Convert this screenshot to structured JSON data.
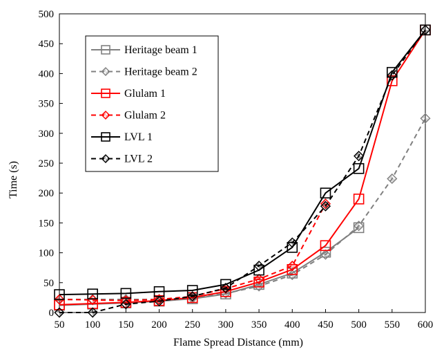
{
  "chart_data": {
    "type": "line",
    "title": "",
    "xlabel": "Flame Spread Distance (mm)",
    "ylabel": "Time (s)",
    "xlim": [
      50,
      600
    ],
    "ylim": [
      0,
      500
    ],
    "x_ticks": [
      50,
      100,
      150,
      200,
      250,
      300,
      350,
      400,
      450,
      500,
      550,
      600
    ],
    "y_ticks": [
      0,
      50,
      100,
      150,
      200,
      250,
      300,
      350,
      400,
      450,
      500
    ],
    "grid": false,
    "legend_position": "top-left",
    "series": [
      {
        "name": "Heritage beam 1",
        "color": "#808080",
        "dash": "solid",
        "marker": "square",
        "points": [
          [
            50,
            12
          ],
          [
            100,
            14
          ],
          [
            150,
            16
          ],
          [
            200,
            19
          ],
          [
            250,
            23
          ],
          [
            300,
            31
          ],
          [
            350,
            47
          ],
          [
            400,
            66
          ],
          [
            450,
            101
          ],
          [
            500,
            142
          ]
        ]
      },
      {
        "name": "Heritage beam 2",
        "color": "#808080",
        "dash": "dashed",
        "marker": "diamond",
        "points": [
          [
            50,
            22
          ],
          [
            100,
            22
          ],
          [
            150,
            22
          ],
          [
            200,
            22
          ],
          [
            250,
            24
          ],
          [
            300,
            32
          ],
          [
            350,
            44
          ],
          [
            400,
            63
          ],
          [
            450,
            97
          ],
          [
            500,
            145
          ],
          [
            550,
            224
          ],
          [
            600,
            325
          ]
        ]
      },
      {
        "name": "Glulam 1",
        "color": "#ff0000",
        "dash": "solid",
        "marker": "square",
        "points": [
          [
            50,
            13
          ],
          [
            100,
            15
          ],
          [
            150,
            17
          ],
          [
            200,
            20
          ],
          [
            250,
            25
          ],
          [
            300,
            35
          ],
          [
            350,
            51
          ],
          [
            400,
            72
          ],
          [
            450,
            112
          ],
          [
            500,
            190
          ],
          [
            550,
            388
          ],
          [
            600,
            473
          ]
        ]
      },
      {
        "name": "Glulam 2",
        "color": "#ff0000",
        "dash": "dashed",
        "marker": "diamond",
        "points": [
          [
            50,
            22
          ],
          [
            100,
            21
          ],
          [
            150,
            20
          ],
          [
            200,
            22
          ],
          [
            250,
            27
          ],
          [
            300,
            40
          ],
          [
            350,
            56
          ],
          [
            400,
            78
          ],
          [
            450,
            182
          ]
        ]
      },
      {
        "name": "LVL 1",
        "color": "#000000",
        "dash": "solid",
        "marker": "square",
        "points": [
          [
            50,
            30
          ],
          [
            100,
            31
          ],
          [
            150,
            32
          ],
          [
            200,
            35
          ],
          [
            250,
            37
          ],
          [
            300,
            47
          ],
          [
            350,
            71
          ],
          [
            400,
            109
          ],
          [
            450,
            200
          ],
          [
            500,
            241
          ],
          [
            550,
            402
          ],
          [
            600,
            473
          ]
        ]
      },
      {
        "name": "LVL 2",
        "color": "#000000",
        "dash": "dashed",
        "marker": "diamond",
        "points": [
          [
            50,
            0
          ],
          [
            100,
            0
          ],
          [
            150,
            14
          ],
          [
            200,
            19
          ],
          [
            250,
            27
          ],
          [
            300,
            41
          ],
          [
            350,
            78
          ],
          [
            400,
            117
          ],
          [
            450,
            178
          ],
          [
            500,
            262
          ],
          [
            550,
            397
          ],
          [
            600,
            473
          ]
        ]
      }
    ]
  }
}
